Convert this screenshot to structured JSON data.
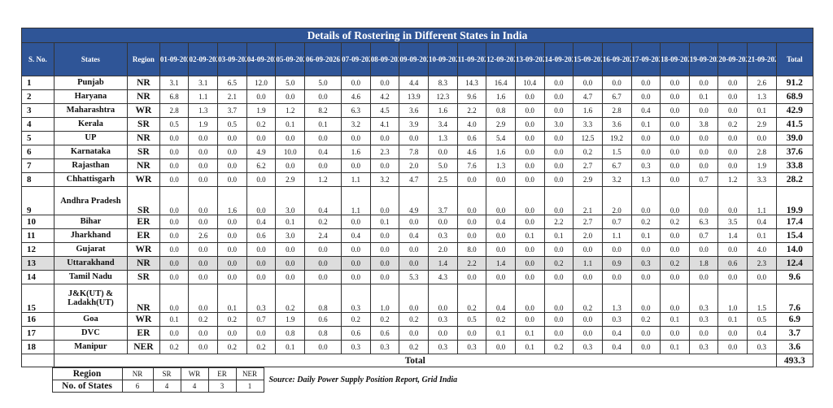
{
  "title": "Details of Rostering in Different States in India",
  "headers": {
    "sno": "S. No.",
    "states": "States",
    "region": "Region",
    "dates": [
      "01-09-2026",
      "02-09-2026",
      "03-09-2026",
      "04-09-2026",
      "05-09-2026",
      "06-09-2026",
      "07-09-2026",
      "08-09-2026",
      "09-09-2026",
      "10-09-2026",
      "11-09-2026",
      "12-09-2026",
      "13-09-2026",
      "14-09-2026",
      "15-09-2026",
      "16-09-2026",
      "17-09-2026",
      "18-09-2026",
      "19-09-2026",
      "20-09-2026",
      "21-09-2026"
    ],
    "total": "Total"
  },
  "rows": [
    {
      "sno": "1",
      "state": "Punjab",
      "region": "NR",
      "values": [
        "3.1",
        "3.1",
        "6.5",
        "12.0",
        "5.0",
        "5.0",
        "0.0",
        "0.0",
        "4.4",
        "8.3",
        "14.3",
        "16.4",
        "10.4",
        "0.0",
        "0.0",
        "0.0",
        "0.0",
        "0.0",
        "0.0",
        "0.0",
        "2.6"
      ],
      "total": "91.2"
    },
    {
      "sno": "2",
      "state": "Haryana",
      "region": "NR",
      "values": [
        "6.8",
        "1.1",
        "2.1",
        "0.0",
        "0.0",
        "0.0",
        "4.6",
        "4.2",
        "13.9",
        "12.3",
        "9.6",
        "1.6",
        "0.0",
        "0.0",
        "4.7",
        "6.7",
        "0.0",
        "0.0",
        "0.1",
        "0.0",
        "1.3"
      ],
      "total": "68.9"
    },
    {
      "sno": "3",
      "state": "Maharashtra",
      "region": "WR",
      "values": [
        "2.8",
        "1.3",
        "3.7",
        "1.9",
        "1.2",
        "8.2",
        "6.3",
        "4.5",
        "3.6",
        "1.6",
        "2.2",
        "0.8",
        "0.0",
        "0.0",
        "1.6",
        "2.8",
        "0.4",
        "0.0",
        "0.0",
        "0.0",
        "0.1"
      ],
      "total": "42.9"
    },
    {
      "sno": "4",
      "state": "Kerala",
      "region": "SR",
      "values": [
        "0.5",
        "1.9",
        "0.5",
        "0.2",
        "0.1",
        "0.1",
        "3.2",
        "4.1",
        "3.9",
        "3.4",
        "4.0",
        "2.9",
        "0.0",
        "3.0",
        "3.3",
        "3.6",
        "0.1",
        "0.0",
        "3.8",
        "0.2",
        "2.9"
      ],
      "total": "41.5"
    },
    {
      "sno": "5",
      "state": "UP",
      "region": "NR",
      "values": [
        "0.0",
        "0.0",
        "0.0",
        "0.0",
        "0.0",
        "0.0",
        "0.0",
        "0.0",
        "0.0",
        "1.3",
        "0.6",
        "5.4",
        "0.0",
        "0.0",
        "12.5",
        "19.2",
        "0.0",
        "0.0",
        "0.0",
        "0.0",
        "0.0"
      ],
      "total": "39.0"
    },
    {
      "sno": "6",
      "state": "Karnataka",
      "region": "SR",
      "values": [
        "0.0",
        "0.0",
        "0.0",
        "4.9",
        "10.0",
        "0.4",
        "1.6",
        "2.3",
        "7.8",
        "0.0",
        "4.6",
        "1.6",
        "0.0",
        "0.0",
        "0.2",
        "1.5",
        "0.0",
        "0.0",
        "0.0",
        "0.0",
        "2.8"
      ],
      "total": "37.6"
    },
    {
      "sno": "7",
      "state": "Rajasthan",
      "region": "NR",
      "values": [
        "0.0",
        "0.0",
        "0.0",
        "6.2",
        "0.0",
        "0.0",
        "0.0",
        "0.0",
        "2.0",
        "5.0",
        "7.6",
        "1.3",
        "0.0",
        "0.0",
        "2.7",
        "6.7",
        "0.3",
        "0.0",
        "0.0",
        "0.0",
        "1.9"
      ],
      "total": "33.8"
    },
    {
      "sno": "8",
      "state": "Chhattisgarh",
      "region": "WR",
      "values": [
        "0.0",
        "0.0",
        "0.0",
        "0.0",
        "2.9",
        "1.2",
        "1.1",
        "3.2",
        "4.7",
        "2.5",
        "0.0",
        "0.0",
        "0.0",
        "0.0",
        "2.9",
        "3.2",
        "1.3",
        "0.0",
        "0.7",
        "1.2",
        "3.3"
      ],
      "total": "28.2"
    },
    {
      "sno": "9",
      "state": "Andhra Pradesh",
      "region": "SR",
      "values": [
        "0.0",
        "0.0",
        "1.6",
        "0.0",
        "3.0",
        "0.4",
        "1.1",
        "0.0",
        "4.9",
        "3.7",
        "0.0",
        "0.0",
        "0.0",
        "0.0",
        "2.1",
        "2.0",
        "0.0",
        "0.0",
        "0.0",
        "0.0",
        "1.1"
      ],
      "total": "19.9",
      "tall": true
    },
    {
      "sno": "10",
      "state": "Bihar",
      "region": "ER",
      "values": [
        "0.0",
        "0.0",
        "0.0",
        "0.4",
        "0.1",
        "0.2",
        "0.0",
        "0.1",
        "0.0",
        "0.0",
        "0.0",
        "0.4",
        "0.0",
        "2.2",
        "2.7",
        "0.7",
        "0.2",
        "0.2",
        "6.3",
        "3.5",
        "0.4"
      ],
      "total": "17.4"
    },
    {
      "sno": "11",
      "state": "Jharkhand",
      "region": "ER",
      "values": [
        "0.0",
        "2.6",
        "0.0",
        "0.6",
        "3.0",
        "2.4",
        "0.4",
        "0.0",
        "0.4",
        "0.3",
        "0.0",
        "0.0",
        "0.1",
        "0.1",
        "2.0",
        "1.1",
        "0.1",
        "0.0",
        "0.7",
        "1.4",
        "0.1"
      ],
      "total": "15.4"
    },
    {
      "sno": "12",
      "state": "Gujarat",
      "region": "WR",
      "values": [
        "0.0",
        "0.0",
        "0.0",
        "0.0",
        "0.0",
        "0.0",
        "0.0",
        "0.0",
        "0.0",
        "2.0",
        "8.0",
        "0.0",
        "0.0",
        "0.0",
        "0.0",
        "0.0",
        "0.0",
        "0.0",
        "0.0",
        "0.0",
        "4.0"
      ],
      "total": "14.0"
    },
    {
      "sno": "13",
      "state": "Uttarakhand",
      "region": "NR",
      "values": [
        "0.0",
        "0.0",
        "0.0",
        "0.0",
        "0.0",
        "0.0",
        "0.0",
        "0.0",
        "0.0",
        "1.4",
        "2.2",
        "1.4",
        "0.0",
        "0.2",
        "1.1",
        "0.9",
        "0.3",
        "0.2",
        "1.8",
        "0.6",
        "2.3"
      ],
      "total": "12.4",
      "highlight": true
    },
    {
      "sno": "14",
      "state": "Tamil Nadu",
      "region": "SR",
      "values": [
        "0.0",
        "0.0",
        "0.0",
        "0.0",
        "0.0",
        "0.0",
        "0.0",
        "0.0",
        "5.3",
        "4.3",
        "0.0",
        "0.0",
        "0.0",
        "0.0",
        "0.0",
        "0.0",
        "0.0",
        "0.0",
        "0.0",
        "0.0",
        "0.0"
      ],
      "total": "9.6"
    },
    {
      "sno": "15",
      "state": "J&K(UT) & Ladakh(UT)",
      "region": "NR",
      "values": [
        "0.0",
        "0.0",
        "0.1",
        "0.3",
        "0.2",
        "0.8",
        "0.3",
        "1.0",
        "0.0",
        "0.0",
        "0.2",
        "0.4",
        "0.0",
        "0.0",
        "0.2",
        "1.3",
        "0.0",
        "0.0",
        "0.3",
        "1.0",
        "1.5"
      ],
      "total": "7.6",
      "tall": true
    },
    {
      "sno": "16",
      "state": "Goa",
      "region": "WR",
      "values": [
        "0.1",
        "0.2",
        "0.2",
        "0.7",
        "1.9",
        "0.6",
        "0.2",
        "0.2",
        "0.2",
        "0.3",
        "0.5",
        "0.2",
        "0.0",
        "0.0",
        "0.0",
        "0.3",
        "0.2",
        "0.1",
        "0.3",
        "0.1",
        "0.5"
      ],
      "total": "6.9"
    },
    {
      "sno": "17",
      "state": "DVC",
      "region": "ER",
      "values": [
        "0.0",
        "0.0",
        "0.0",
        "0.0",
        "0.8",
        "0.8",
        "0.6",
        "0.6",
        "0.0",
        "0.0",
        "0.0",
        "0.1",
        "0.1",
        "0.0",
        "0.0",
        "0.4",
        "0.0",
        "0.0",
        "0.0",
        "0.0",
        "0.4"
      ],
      "total": "3.7"
    },
    {
      "sno": "18",
      "state": "Manipur",
      "region": "NER",
      "values": [
        "0.2",
        "0.0",
        "0.2",
        "0.2",
        "0.1",
        "0.0",
        "0.3",
        "0.3",
        "0.2",
        "0.3",
        "0.3",
        "0.0",
        "0.1",
        "0.2",
        "0.3",
        "0.4",
        "0.0",
        "0.1",
        "0.3",
        "0.0",
        "0.3"
      ],
      "total": "3.6"
    }
  ],
  "grand_total": {
    "label": "Total",
    "value": "493.3"
  },
  "footer": {
    "region_label": "Region",
    "states_label": "No. of States",
    "regions": [
      "NR",
      "SR",
      "WR",
      "ER",
      "NER"
    ],
    "counts": [
      "6",
      "4",
      "4",
      "3",
      "1"
    ],
    "source": "Source: Daily Power Supply Position Report, Grid India"
  },
  "colors": {
    "header_bg": "#2f5597",
    "header_text": "#ffffff",
    "highlight_row": "#dddddd"
  }
}
